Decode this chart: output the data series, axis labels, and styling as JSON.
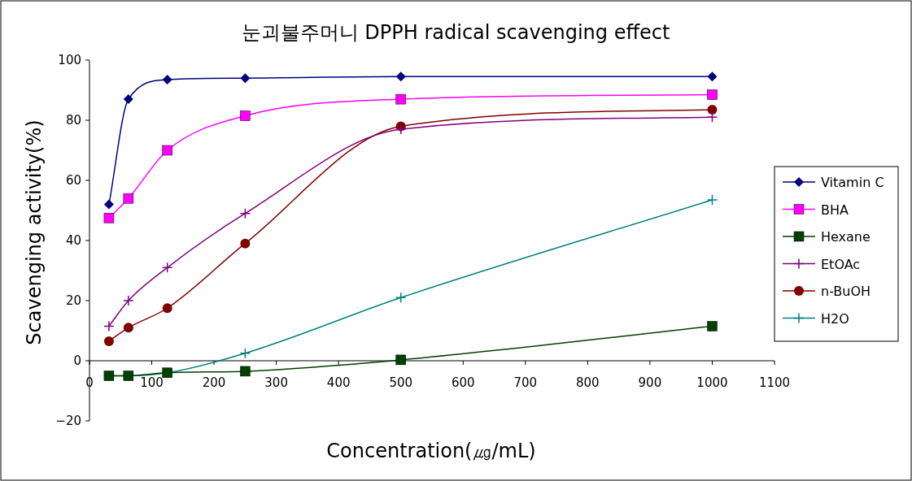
{
  "chart_data": {
    "type": "line",
    "title": "눈괴불주머니 DPPH radical scavenging effect",
    "xlabel": "Concentration(㎍/mL)",
    "ylabel": "Scavenging activity(%)",
    "x": [
      31.25,
      62.5,
      125,
      250,
      500,
      1000
    ],
    "xlim": [
      0,
      1100
    ],
    "xticks": [
      0,
      100,
      200,
      300,
      400,
      500,
      600,
      700,
      800,
      900,
      1000,
      1100
    ],
    "ylim": [
      -20,
      100
    ],
    "yticks": [
      -20,
      0,
      20,
      40,
      60,
      80,
      100
    ],
    "grid": false,
    "legend": "right",
    "series": [
      {
        "name": "Vitamin C",
        "color": "#000080",
        "marker": "diamond",
        "values": [
          52,
          87,
          93.5,
          94,
          94.5,
          94.5
        ]
      },
      {
        "name": "BHA",
        "color": "#ff00ff",
        "marker": "square",
        "values": [
          47.5,
          54,
          70,
          81.5,
          87,
          88.5
        ]
      },
      {
        "name": "Hexane",
        "color": "#004000",
        "marker": "square",
        "values": [
          -5,
          -5,
          -4,
          -3.5,
          0.3,
          11.5
        ]
      },
      {
        "name": "EtOAc",
        "color": "#800080",
        "marker": "cross",
        "values": [
          11.5,
          20,
          31,
          49,
          77,
          81
        ]
      },
      {
        "name": "n-BuOH",
        "color": "#800000",
        "marker": "circle",
        "values": [
          6.5,
          11,
          17.5,
          39,
          78,
          83.5
        ]
      },
      {
        "name": "H2O",
        "color": "#008080",
        "marker": "cross",
        "values": [
          -5,
          -5,
          -4,
          2.5,
          21,
          53.5
        ]
      }
    ]
  }
}
